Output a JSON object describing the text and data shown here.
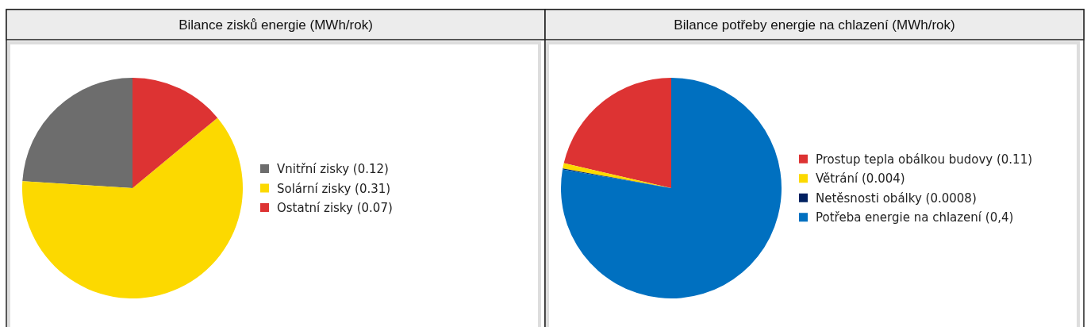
{
  "chart_data": [
    {
      "type": "pie",
      "title": "Bilance zisků energie (MWh/rok)",
      "categories": [
        "Vnitřní zisky (0.12)",
        "Solární zisky (0.31)",
        "Ostatní zisky (0.07)"
      ],
      "values": [
        0.12,
        0.31,
        0.07
      ],
      "colors": [
        "#6d6d6d",
        "#fcd900",
        "#dd3333"
      ],
      "legend": "right"
    },
    {
      "type": "pie",
      "title": "Bilance potřeby energie na chlazení (MWh/rok)",
      "categories": [
        "Prostup tepla obálkou budovy (0.11)",
        "Větrání (0.004)",
        "Netěsnosti obálky (0.0008)",
        "Potřeba energie na chlazení (0,4)"
      ],
      "values": [
        0.11,
        0.004,
        0.0008,
        0.4
      ],
      "colors": [
        "#dd3333",
        "#fcd900",
        "#002060",
        "#0070c0"
      ],
      "legend": "right"
    }
  ]
}
